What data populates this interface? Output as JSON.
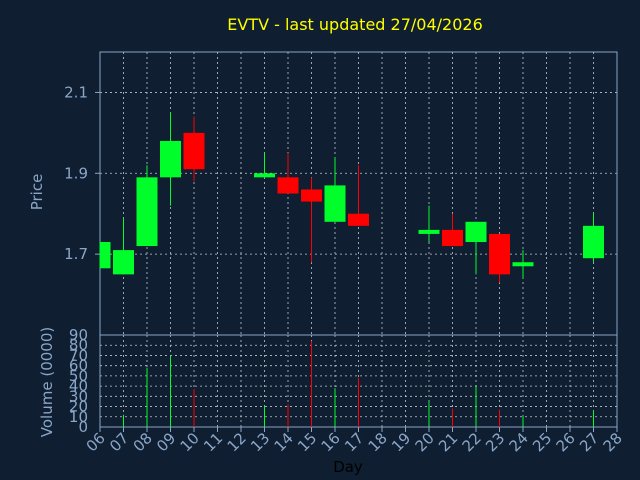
{
  "chart_data": {
    "type": "candlestick",
    "title": "EVTV - last updated 27/04/2026",
    "xlabel": "Day",
    "price_panel": {
      "ylabel": "Price",
      "ylim": [
        1.5,
        2.2
      ],
      "yticks": [
        "1.7",
        "1.9",
        "2.1"
      ],
      "grid": true
    },
    "volume_panel": {
      "ylabel": "Volume (0000)",
      "ylim": [
        0,
        90
      ],
      "yticks": [
        "0",
        "10",
        "20",
        "30",
        "40",
        "50",
        "60",
        "70",
        "80",
        "90"
      ],
      "grid": true
    },
    "x_ticks": [
      "06",
      "07",
      "08",
      "09",
      "10",
      "11",
      "12",
      "13",
      "14",
      "15",
      "16",
      "17",
      "18",
      "19",
      "20",
      "21",
      "22",
      "23",
      "24",
      "25",
      "26",
      "27",
      "28"
    ],
    "candles": [
      {
        "day": "06",
        "open": 1.665,
        "close": 1.73,
        "high": 1.73,
        "low": 1.665,
        "volume": 0
      },
      {
        "day": "07",
        "open": 1.65,
        "close": 1.71,
        "high": 1.79,
        "low": 1.65,
        "volume": 12
      },
      {
        "day": "08",
        "open": 1.72,
        "close": 1.89,
        "high": 1.92,
        "low": 1.72,
        "volume": 58
      },
      {
        "day": "09",
        "open": 1.89,
        "close": 1.98,
        "high": 2.05,
        "low": 1.82,
        "volume": 70
      },
      {
        "day": "10",
        "open": 2.0,
        "close": 1.91,
        "high": 2.04,
        "low": 1.88,
        "volume": 37
      },
      {
        "day": "13",
        "open": 1.89,
        "close": 1.9,
        "high": 1.95,
        "low": 1.89,
        "volume": 21
      },
      {
        "day": "14",
        "open": 1.89,
        "close": 1.85,
        "high": 1.95,
        "low": 1.85,
        "volume": 22
      },
      {
        "day": "15",
        "open": 1.86,
        "close": 1.83,
        "high": 1.89,
        "low": 1.68,
        "volume": 84
      },
      {
        "day": "16",
        "open": 1.78,
        "close": 1.87,
        "high": 1.94,
        "low": 1.78,
        "volume": 38
      },
      {
        "day": "17",
        "open": 1.8,
        "close": 1.77,
        "high": 1.92,
        "low": 1.77,
        "volume": 48
      },
      {
        "day": "20",
        "open": 1.75,
        "close": 1.76,
        "high": 1.82,
        "low": 1.73,
        "volume": 25
      },
      {
        "day": "21",
        "open": 1.76,
        "close": 1.72,
        "high": 1.8,
        "low": 1.72,
        "volume": 18
      },
      {
        "day": "22",
        "open": 1.73,
        "close": 1.78,
        "high": 1.78,
        "low": 1.65,
        "volume": 40
      },
      {
        "day": "23",
        "open": 1.75,
        "close": 1.65,
        "high": 1.75,
        "low": 1.63,
        "volume": 17
      },
      {
        "day": "24",
        "open": 1.67,
        "close": 1.68,
        "high": 1.71,
        "low": 1.64,
        "volume": 11
      },
      {
        "day": "27",
        "open": 1.69,
        "close": 1.77,
        "high": 1.8,
        "low": 1.68,
        "volume": 16
      }
    ],
    "colors": {
      "up": "#00ff2a",
      "down": "#ff0000",
      "background": "#0f1e30",
      "grid": "#c0c8d0",
      "axis_text": "#8aa6c8",
      "title": "#ffff00",
      "xlabel": "#000000"
    }
  }
}
